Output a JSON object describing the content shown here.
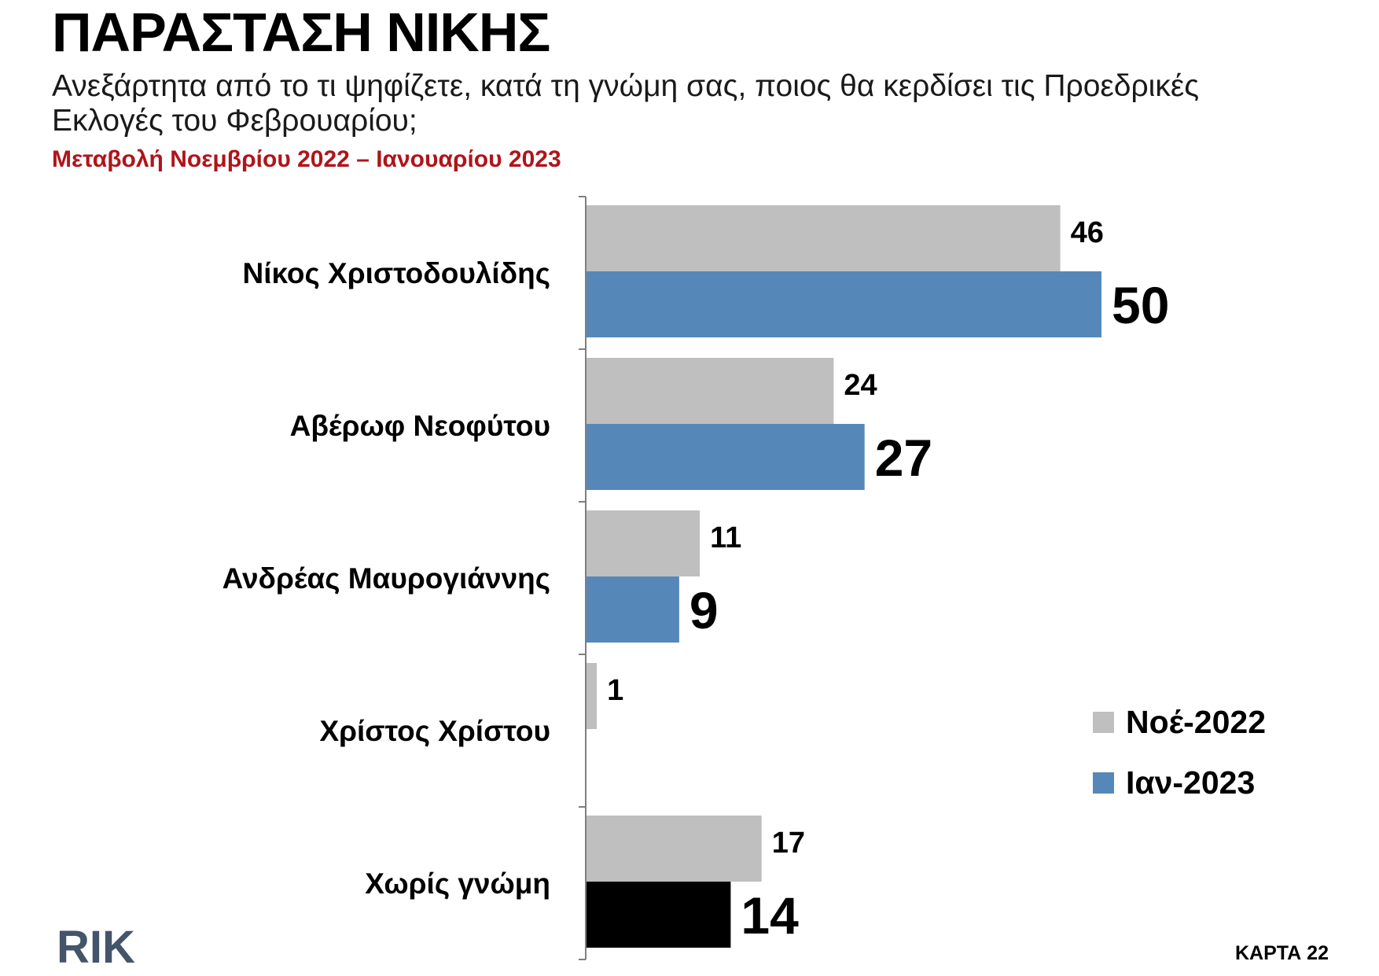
{
  "header": {
    "title": "ΠΑΡΑΣΤΑΣΗ ΝΙΚΗΣ",
    "subtitle": "Ανεξάρτητα από το τι ψηφίζετε, κατά τη γνώμη σας, ποιος θα κερδίσει τις Προεδρικές Εκλογές του Φεβρουαρίου;",
    "period": "Μεταβολή Νοεμβρίου 2022 – Ιανουαρίου 2023"
  },
  "footer": {
    "logo_text": "RIK",
    "card_label": "ΚΑΡΤΑ 22"
  },
  "colors": {
    "nov": "#bfbfbf",
    "jan": "#5588b8",
    "no_opinion_jan": "#000000",
    "period": "#b0141a",
    "axis": "#7f7f7f"
  },
  "chart_data": {
    "type": "bar",
    "orientation": "horizontal",
    "categories": [
      "Νίκος Χριστοδουλίδης",
      "Αβέρωφ Νεοφύτου",
      "Ανδρέας Μαυρογιάννης",
      "Χρίστος Χρίστου",
      "Χωρίς γνώμη"
    ],
    "series": [
      {
        "name": "Νοέ-2022",
        "values": [
          46,
          24,
          11,
          1,
          17
        ]
      },
      {
        "name": "Ιαν-2023",
        "values": [
          50,
          27,
          9,
          null,
          14
        ]
      }
    ],
    "xlim": [
      0,
      55
    ],
    "grid": false,
    "legend_position": "right"
  }
}
